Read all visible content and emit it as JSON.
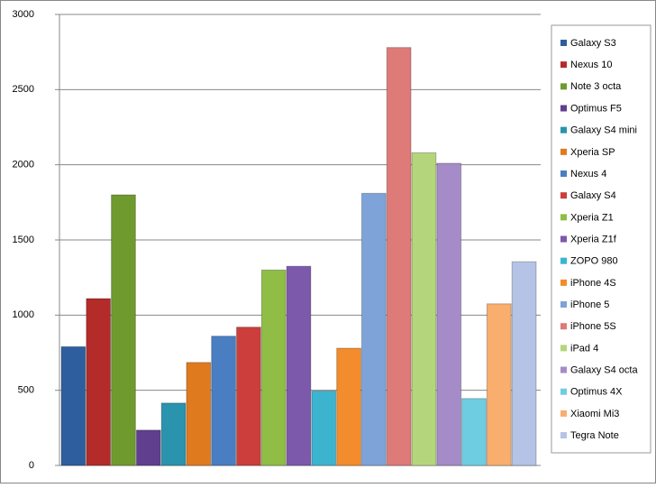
{
  "chart_data": {
    "type": "bar",
    "categories": [
      null
    ],
    "series": [
      {
        "name": "Galaxy S3",
        "color": "#2e5e9e",
        "values": [
          790
        ]
      },
      {
        "name": "Nexus 10",
        "color": "#b32c2a",
        "values": [
          1110
        ]
      },
      {
        "name": "Note 3 octa",
        "color": "#6f9a2e",
        "values": [
          1800
        ]
      },
      {
        "name": "Optimus F5",
        "color": "#5f3f8e",
        "values": [
          235
        ]
      },
      {
        "name": "Galaxy S4 mini",
        "color": "#2a93ad",
        "values": [
          415
        ]
      },
      {
        "name": "Xperia SP",
        "color": "#e07a1e",
        "values": [
          685
        ]
      },
      {
        "name": "Nexus 4",
        "color": "#4a7ec2",
        "values": [
          860
        ]
      },
      {
        "name": "Galaxy S4",
        "color": "#cc3e3b",
        "values": [
          920
        ]
      },
      {
        "name": "Xperia Z1",
        "color": "#8fbd45",
        "values": [
          1300
        ]
      },
      {
        "name": "Xperia Z1f",
        "color": "#7c59aa",
        "values": [
          1325
        ]
      },
      {
        "name": "ZOPO 980",
        "color": "#3cb4d0",
        "values": [
          495
        ]
      },
      {
        "name": "iPhone 4S",
        "color": "#f28c2c",
        "values": [
          780
        ]
      },
      {
        "name": "iPhone 5",
        "color": "#7ea3d8",
        "values": [
          1810
        ]
      },
      {
        "name": "iPhone 5S",
        "color": "#de7a78",
        "values": [
          2780
        ]
      },
      {
        "name": "iPad 4",
        "color": "#b5d57c",
        "values": [
          2080
        ]
      },
      {
        "name": "Galaxy S4 octa",
        "color": "#a58cc8",
        "values": [
          2010
        ]
      },
      {
        "name": "Optimus 4X",
        "color": "#6fcde2",
        "values": [
          445
        ]
      },
      {
        "name": "Xiaomi Mi3",
        "color": "#f9ae6e",
        "values": [
          1075
        ]
      },
      {
        "name": "Tegra Note",
        "color": "#b4c3e6",
        "values": [
          1355
        ]
      }
    ],
    "ylim": [
      0,
      3000
    ],
    "yticks": [
      0,
      500,
      1000,
      1500,
      2000,
      2500,
      3000
    ],
    "grid": true,
    "legend": "right"
  }
}
